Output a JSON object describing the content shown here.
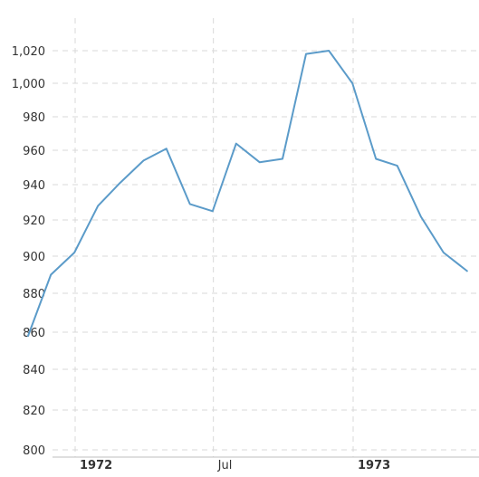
{
  "chart_data": {
    "type": "line",
    "title": "",
    "xlabel": "",
    "ylabel": "",
    "ylim": [
      800,
      1030
    ],
    "grid": true,
    "y_ticks": [
      800,
      820,
      840,
      860,
      880,
      900,
      920,
      940,
      960,
      980,
      1000,
      1020
    ],
    "y_tick_labels": [
      "800",
      "820",
      "840",
      "860",
      "880",
      "900",
      "920",
      "940",
      "960",
      "980",
      "1,000",
      "1,020"
    ],
    "x_ticks": [
      {
        "date": "1972-01",
        "label": "1972",
        "bold": true
      },
      {
        "date": "1972-07",
        "label": "Jul",
        "bold": false
      },
      {
        "date": "1973-01",
        "label": "1973",
        "bold": true
      }
    ],
    "series": [
      {
        "color": "#5b9bc9",
        "points": [
          {
            "x": "1971-10-31",
            "y": 858
          },
          {
            "x": "1971-11-30",
            "y": 890
          },
          {
            "x": "1971-12-31",
            "y": 902
          },
          {
            "x": "1972-01-31",
            "y": 928
          },
          {
            "x": "1972-02-29",
            "y": 941
          },
          {
            "x": "1972-03-31",
            "y": 954
          },
          {
            "x": "1972-04-30",
            "y": 961
          },
          {
            "x": "1972-05-31",
            "y": 929
          },
          {
            "x": "1972-06-30",
            "y": 925
          },
          {
            "x": "1972-07-31",
            "y": 964
          },
          {
            "x": "1972-08-31",
            "y": 953
          },
          {
            "x": "1972-09-30",
            "y": 955
          },
          {
            "x": "1972-10-31",
            "y": 1018
          },
          {
            "x": "1972-11-30",
            "y": 1020
          },
          {
            "x": "1972-12-31",
            "y": 1000
          },
          {
            "x": "1973-01-31",
            "y": 955
          },
          {
            "x": "1973-02-28",
            "y": 951
          },
          {
            "x": "1973-03-31",
            "y": 922
          },
          {
            "x": "1973-04-30",
            "y": 902
          },
          {
            "x": "1973-05-31",
            "y": 892
          }
        ]
      }
    ]
  }
}
